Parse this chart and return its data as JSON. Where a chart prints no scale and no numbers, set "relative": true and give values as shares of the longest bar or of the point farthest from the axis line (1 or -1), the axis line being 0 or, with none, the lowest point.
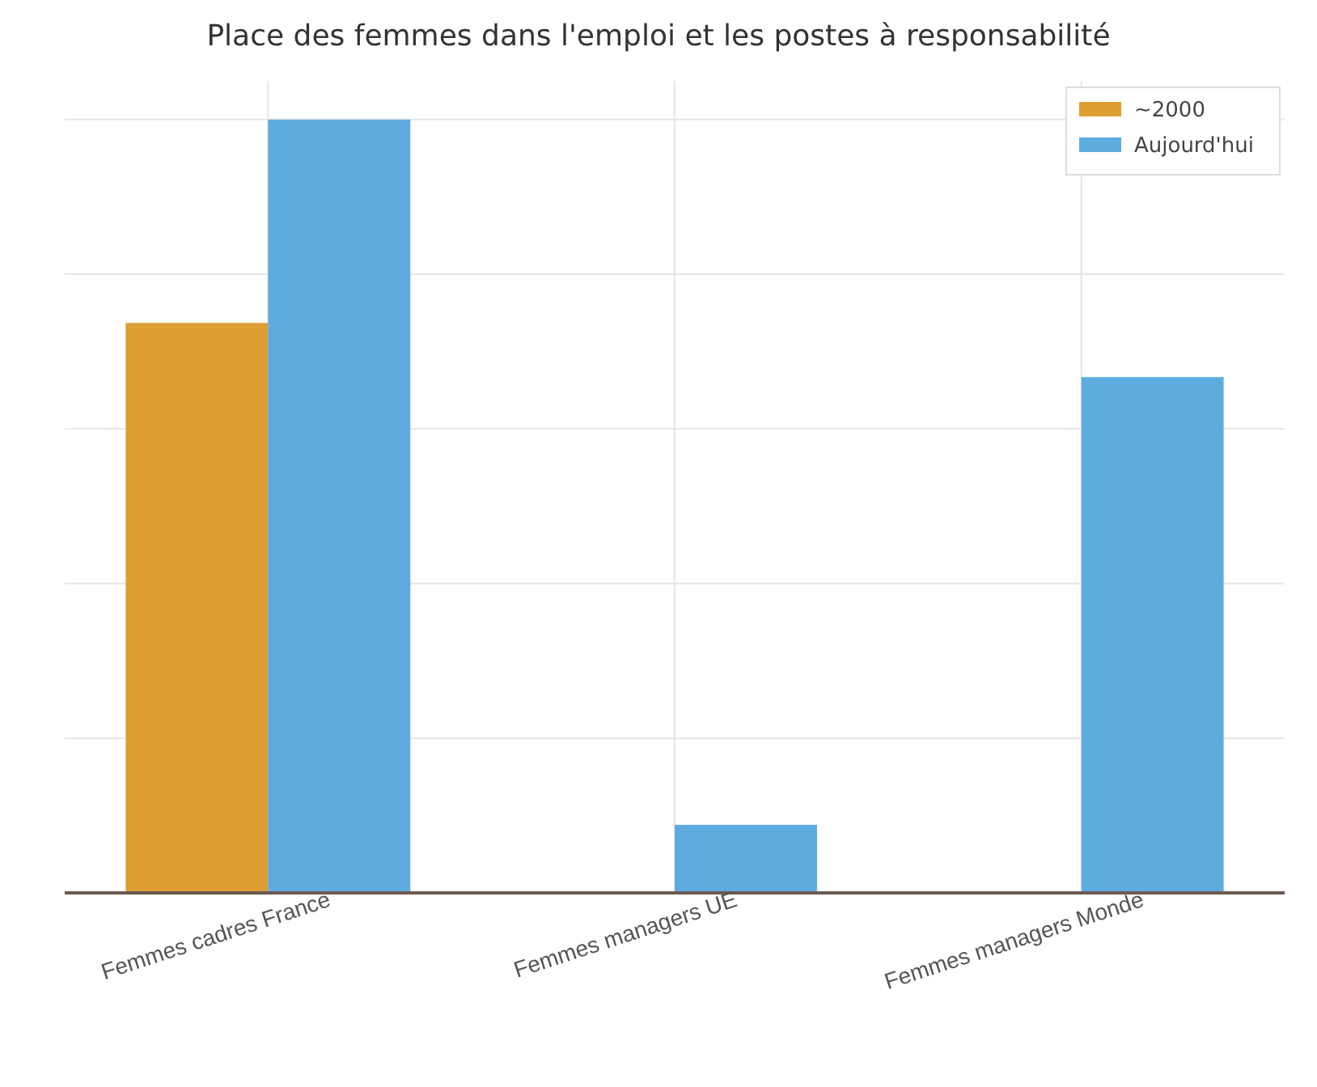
{
  "chart_data": {
    "type": "bar",
    "title": "Place des femmes dans l'emploi et les postes à responsabilité",
    "categories": [
      "Femmes cadres France",
      "Femmes managers UE",
      "Femmes managers Monde"
    ],
    "relative": true,
    "grid": true,
    "legend": "top right",
    "series": [
      {
        "name": "~2000",
        "color": "#dd9f33",
        "values": [
          0.737,
          null,
          null
        ]
      },
      {
        "name": "Aujourd'hui",
        "color": "#5eabe0",
        "values": [
          1,
          0.088,
          0.667
        ]
      }
    ]
  }
}
